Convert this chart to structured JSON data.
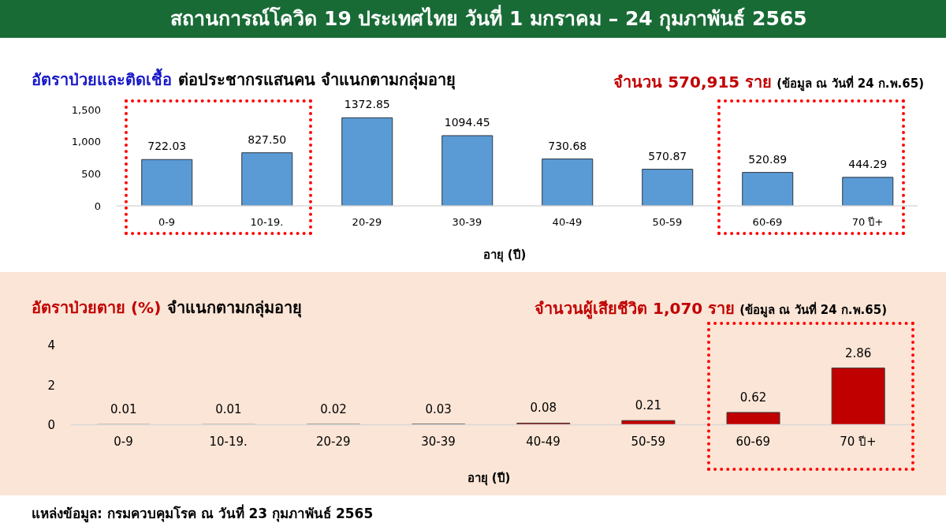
{
  "chart_data": [
    {
      "type": "bar",
      "title": "อัตราป่วยและติดเชื้อ",
      "subtitle": "ต่อประชากรแสนคน จำแนกตามกลุ่มอายุ",
      "xlabel": "อายุ (ปี)",
      "annotations": [
        "สถานการณ์โควิด 19 ประเทศไทย วันที่ 1 มกราคม – 24 กุมภาพันธ์ 2565",
        "จำนวน 570,915 ราย",
        "(ข้อมูล ณ วันที่ 24 ก.พ.65)"
      ],
      "categories": [
        "0-9",
        "10-19.",
        "20-29",
        "30-39",
        "40-49",
        "50-59",
        "60-69",
        "70 ปี+"
      ],
      "values": [
        722.03,
        827.5,
        1372.85,
        1094.45,
        730.68,
        570.87,
        520.89,
        444.29
      ],
      "value_labels": [
        "722.03",
        "827.50",
        "1372.85",
        "1094.45",
        "730.68",
        "570.87",
        "520.89",
        "444.29"
      ],
      "color": "#5b9bd5",
      "ylim": [
        0,
        1500
      ],
      "yticks": [
        0,
        500,
        {
          "value": 1000,
          "label": "1,000"
        },
        {
          "value": 1500,
          "label": "1,500"
        }
      ]
    },
    {
      "type": "bar",
      "title": "อัตราป่วยตาย (%)",
      "subtitle": "จำแนกตามกลุ่มอายุ",
      "xlabel": "อายุ (ปี)",
      "annotations": [
        "จำนวนผู้เสียชีวิต 1,070 ราย",
        "(ข้อมูล ณ วันที่ 24 ก.พ.65)",
        "แหล่งข้อมูล: กรมควบคุมโรค ณ วันที่ 23 กุมภาพันธ์ 2565"
      ],
      "categories": [
        "0-9",
        "10-19.",
        "20-29",
        "30-39",
        "40-49",
        "50-59",
        "60-69",
        "70 ปี+"
      ],
      "values": [
        0.01,
        0.01,
        0.02,
        0.03,
        0.08,
        0.21,
        0.62,
        2.86
      ],
      "data_labels": true,
      "color": "#c00000",
      "ylim": [
        0,
        4
      ],
      "yticks": [
        0,
        2,
        4
      ]
    }
  ]
}
